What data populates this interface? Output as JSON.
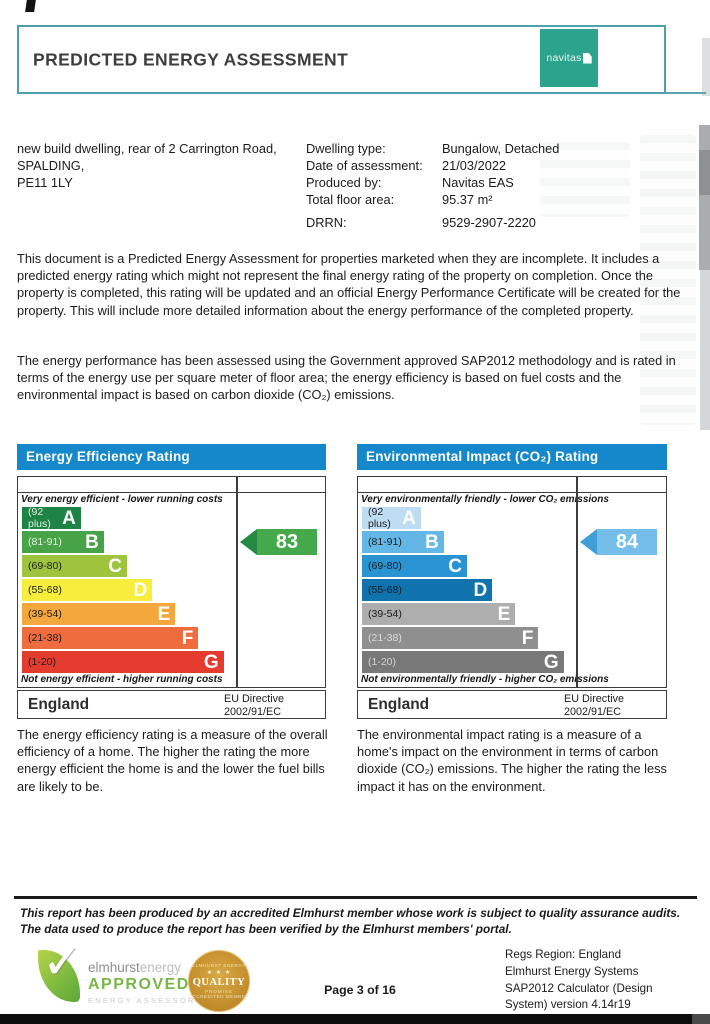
{
  "header": {
    "title": "PREDICTED ENERGY ASSESSMENT",
    "logo_text": "navitas",
    "logo_color": "#2ca38c",
    "border_color": "#4e9fae"
  },
  "property": {
    "address": "new build dwelling, rear of 2 Carrington Road,\nSPALDING,\nPE11 1LY",
    "details": [
      {
        "label": "Dwelling type:",
        "value": "Bungalow, Detached"
      },
      {
        "label": "Date of assessment:",
        "value": "21/03/2022"
      },
      {
        "label": "Produced by:",
        "value": "Navitas EAS"
      },
      {
        "label": "Total floor area:",
        "value": "95.37 m²"
      },
      {
        "label": "DRRN:",
        "value": "9529-2907-2220"
      }
    ]
  },
  "intro_paragraphs": {
    "p1": "This document is a Predicted Energy Assessment for properties marketed when they are incomplete. It includes a predicted energy rating which might not represent the final energy rating of the property on completion. Once the property is completed, this rating will be updated and an official Energy Performance Certificate will be created for the property. This will include more detailed information about the energy performance of the completed property.",
    "p2": "The energy performance has been assessed using the Government approved SAP2012 methodology and is rated in terms of the energy use per square meter of floor area; the energy efficiency is based on fuel costs and the environmental impact is based on carbon dioxide (CO₂) emissions."
  },
  "chart_data": [
    {
      "type": "bar",
      "subtype": "epc-rating-bands",
      "title": "Energy Efficiency Rating",
      "header_color": "#1588cb",
      "top_caption": "Very energy efficient - lower running costs",
      "bottom_caption": "Not energy efficient - higher running costs",
      "region_label": "England",
      "directive_label": "EU Directive\n2002/91/EC",
      "current_rating": 83,
      "current_band": "B",
      "arrow_color": "#45a94b",
      "arrow_tip_color": "#258a41",
      "categories": [
        "A",
        "B",
        "C",
        "D",
        "E",
        "F",
        "G"
      ],
      "bands": [
        {
          "letter": "A",
          "range": "(92 plus)",
          "width_pct": 28,
          "color": "#1e8446",
          "label_color": "#e3efe1"
        },
        {
          "letter": "B",
          "range": "(81-91)",
          "width_pct": 39,
          "color": "#47a348",
          "label_color": "#e3efe1"
        },
        {
          "letter": "C",
          "range": "(69-80)",
          "width_pct": 50,
          "color": "#9ec43d",
          "label_color": "#1c1c1c"
        },
        {
          "letter": "D",
          "range": "(55-68)",
          "width_pct": 62,
          "color": "#f6ed3d",
          "label_color": "#1c1c1c"
        },
        {
          "letter": "E",
          "range": "(39-54)",
          "width_pct": 73,
          "color": "#f4a73c",
          "label_color": "#1c1c1c"
        },
        {
          "letter": "F",
          "range": "(21-38)",
          "width_pct": 84,
          "color": "#ef6c3f",
          "label_color": "#1c1c1c"
        },
        {
          "letter": "G",
          "range": "(1-20)",
          "width_pct": 96,
          "color": "#e33b2e",
          "label_color": "#1c1c1c"
        }
      ]
    },
    {
      "type": "bar",
      "subtype": "epc-rating-bands",
      "title": "Environmental Impact (CO₂) Rating",
      "header_color": "#1588cb",
      "top_caption": "Very environmentally friendly - lower CO₂ emissions",
      "bottom_caption": "Not environmentally friendly - higher CO₂ emissions",
      "region_label": "England",
      "directive_label": "EU Directive\n2002/91/EC",
      "current_rating": 84,
      "current_band": "B",
      "arrow_color": "#74bee9",
      "arrow_tip_color": "#3f9fd8",
      "categories": [
        "A",
        "B",
        "C",
        "D",
        "E",
        "F",
        "G"
      ],
      "bands": [
        {
          "letter": "A",
          "range": "(92 plus)",
          "width_pct": 28,
          "color": "#bedcf2",
          "label_color": "#1c1c1c"
        },
        {
          "letter": "B",
          "range": "(81-91)",
          "width_pct": 39,
          "color": "#63b7e6",
          "label_color": "#1c1c1c"
        },
        {
          "letter": "C",
          "range": "(69-80)",
          "width_pct": 50,
          "color": "#2a94d2",
          "label_color": "#1c1c1c"
        },
        {
          "letter": "D",
          "range": "(55-68)",
          "width_pct": 62,
          "color": "#1173ae",
          "label_color": "#0e1c26"
        },
        {
          "letter": "E",
          "range": "(39-54)",
          "width_pct": 73,
          "color": "#aeaeae",
          "label_color": "#1c1c1c"
        },
        {
          "letter": "F",
          "range": "(21-38)",
          "width_pct": 84,
          "color": "#8f8f8f",
          "label_color": "#d9d9d9"
        },
        {
          "letter": "G",
          "range": "(1-20)",
          "width_pct": 96,
          "color": "#787878",
          "label_color": "#d2d2d2"
        }
      ]
    }
  ],
  "explanations": {
    "left": "The energy efficiency rating is a measure of the overall efficiency of a home. The higher the rating the more energy efficient the home is and the lower the fuel bills are likely to be.",
    "right": "The environmental impact rating is a measure of a home's impact on the environment in terms of carbon dioxide (CO₂) emissions. The higher the rating the less impact it has on the environment."
  },
  "footer": {
    "disclaimer": "This report has been produced by an accredited Elmhurst member whose work is subject to quality assurance audits. The data used to produce the report has been verified by the Elmhurst members' portal.",
    "elmhurst": {
      "name_part1": "elmhurst",
      "name_part2": "energy",
      "approved": "APPROVED",
      "assessor": "ENERGY ASSESSOR"
    },
    "quality_badge": {
      "arc_top": "ELMHURST ENERGY",
      "stars": "★ ★ ★",
      "word": "QUALITY",
      "sub": "PROMISE",
      "arc_bottom": "ACCREDITED MEMBER"
    },
    "page_number": "Page 3 of 16",
    "regs_block": "Regs Region: England\nElmhurst Energy Systems\nSAP2012 Calculator (Design\nSystem) version 4.14r19"
  }
}
